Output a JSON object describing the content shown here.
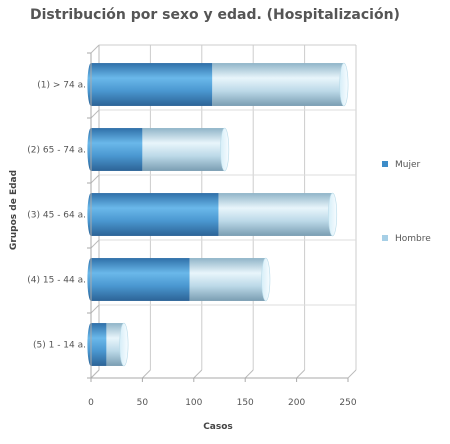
{
  "chart_data": {
    "type": "bar",
    "orientation": "horizontal",
    "stacked": true,
    "title": "Distribución por sexo y edad. (Hospitalización)",
    "xlabel": "Casos",
    "ylabel": "Grupos de Edad",
    "categories": [
      "(1) > 74 a.",
      "(2) 65 - 74 a.",
      "(3) 45 - 64 a.",
      "(4) 15 - 44 a.",
      "(5) 1 - 14 a."
    ],
    "series": [
      {
        "name": "Mujer",
        "values": [
          118,
          50,
          124,
          96,
          15
        ],
        "color": "#3d8cc8"
      },
      {
        "name": "Hombre",
        "values": [
          128,
          80,
          111,
          74,
          17
        ],
        "color": "#a6cfe6"
      }
    ],
    "xlim": [
      0,
      250
    ],
    "xticks": [
      0,
      50,
      100,
      150,
      200,
      250
    ],
    "grid": true,
    "legend_position": "right"
  }
}
